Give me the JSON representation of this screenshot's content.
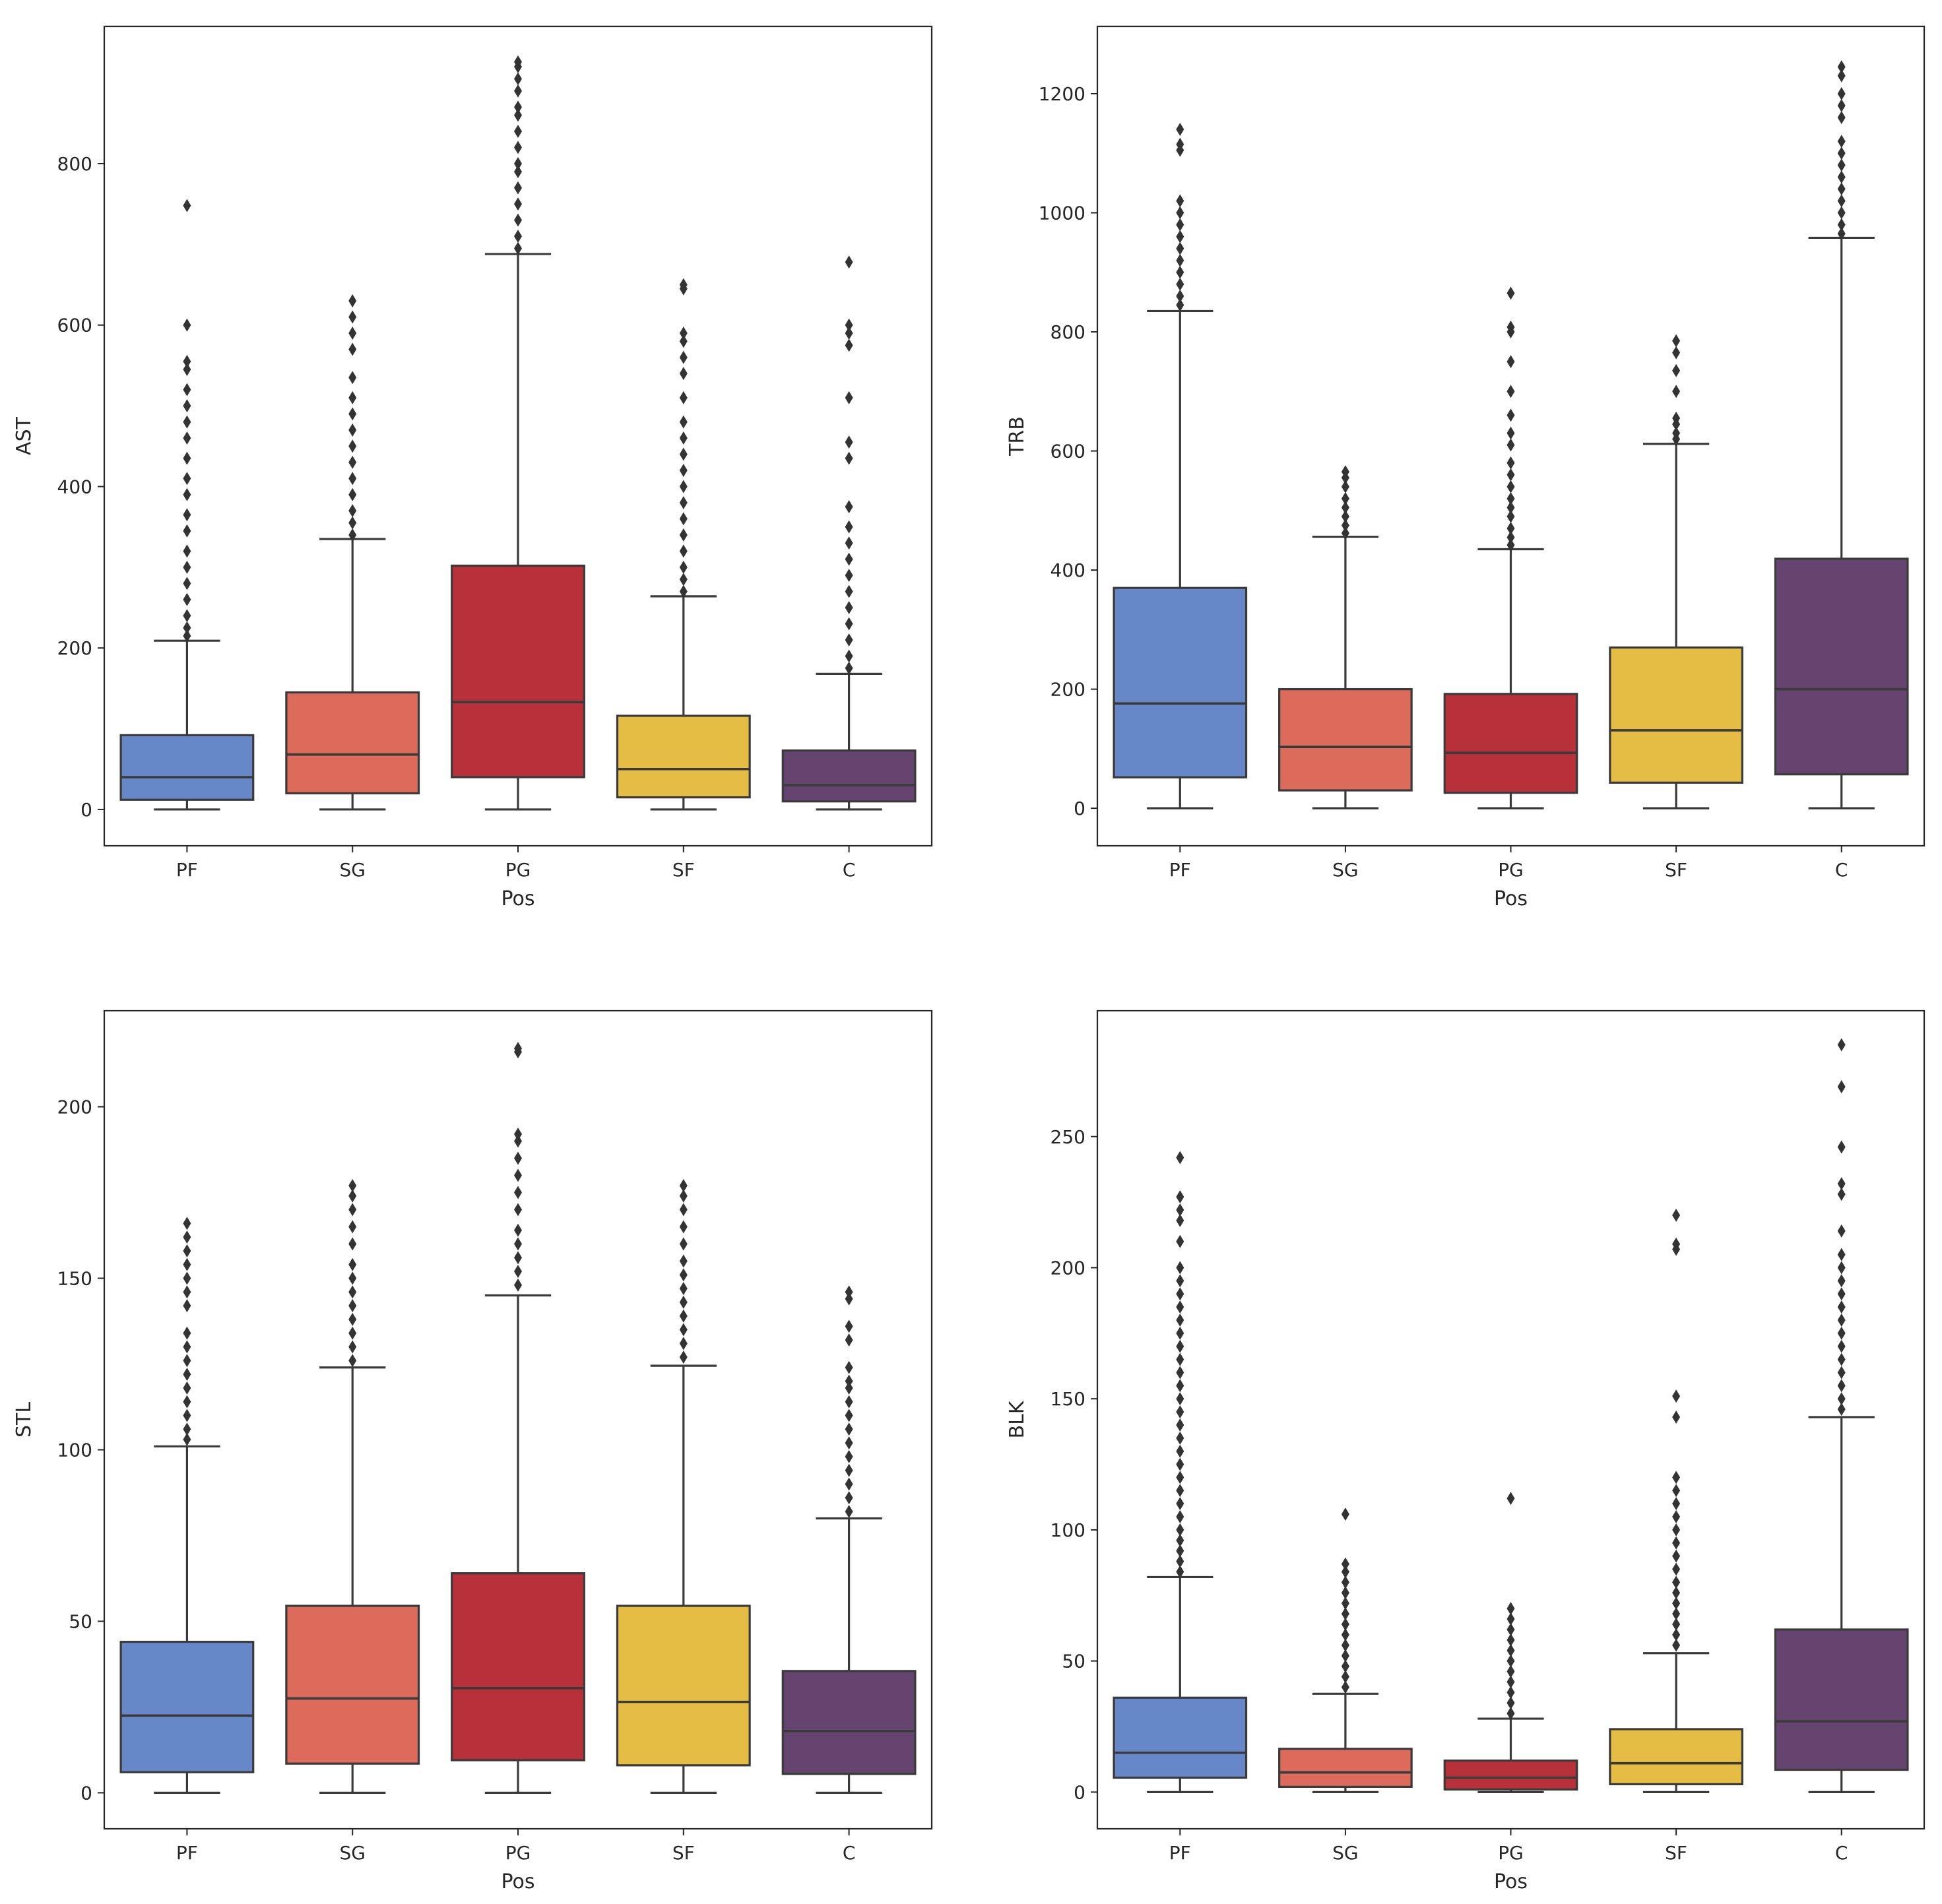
{
  "figure": {
    "palette": {
      "PF": "#6688c8",
      "SG": "#dc6b5c",
      "PG": "#b7303a",
      "SF": "#e5bd44",
      "C": "#654570"
    }
  },
  "chart_data": [
    {
      "type": "box",
      "panel": "top-left",
      "xlabel": "Pos",
      "ylabel": "AST",
      "categories": [
        "PF",
        "SG",
        "PG",
        "SF",
        "C"
      ],
      "ylim": [
        -45,
        970
      ],
      "yticks": [
        0,
        200,
        400,
        600,
        800
      ],
      "boxes": [
        {
          "name": "PF",
          "min": 0,
          "q1": 12,
          "median": 40,
          "q3": 92,
          "max": 209,
          "outliers": [
            215,
            225,
            240,
            260,
            280,
            300,
            320,
            345,
            365,
            390,
            410,
            435,
            460,
            480,
            500,
            520,
            545,
            555,
            600,
            748
          ]
        },
        {
          "name": "SG",
          "min": 0,
          "q1": 20,
          "median": 68,
          "q3": 145,
          "max": 335,
          "outliers": [
            340,
            355,
            370,
            390,
            410,
            430,
            450,
            470,
            490,
            510,
            535,
            570,
            590,
            610,
            630
          ]
        },
        {
          "name": "PG",
          "min": 0,
          "q1": 40,
          "median": 133,
          "q3": 302,
          "max": 688,
          "outliers": [
            695,
            710,
            730,
            750,
            770,
            790,
            800,
            820,
            840,
            860,
            870,
            890,
            905,
            920,
            926
          ]
        },
        {
          "name": "SF",
          "min": 0,
          "q1": 15,
          "median": 50,
          "q3": 116,
          "max": 264,
          "outliers": [
            270,
            285,
            300,
            320,
            340,
            360,
            380,
            400,
            420,
            440,
            460,
            480,
            510,
            540,
            560,
            580,
            590,
            645,
            650
          ]
        },
        {
          "name": "C",
          "min": 0,
          "q1": 10,
          "median": 30,
          "q3": 73,
          "max": 168,
          "outliers": [
            175,
            190,
            210,
            230,
            250,
            270,
            290,
            310,
            330,
            350,
            375,
            435,
            455,
            510,
            575,
            590,
            600,
            678
          ]
        }
      ]
    },
    {
      "type": "box",
      "panel": "top-right",
      "xlabel": "Pos",
      "ylabel": "TRB",
      "categories": [
        "PF",
        "SG",
        "PG",
        "SF",
        "C"
      ],
      "ylim": [
        -63,
        1313
      ],
      "yticks": [
        0,
        200,
        400,
        600,
        800,
        1000,
        1200
      ],
      "boxes": [
        {
          "name": "PF",
          "min": 0,
          "q1": 52,
          "median": 176,
          "q3": 370,
          "max": 835,
          "outliers": [
            845,
            860,
            880,
            900,
            920,
            940,
            960,
            980,
            1000,
            1020,
            1105,
            1115,
            1140
          ]
        },
        {
          "name": "SG",
          "min": 0,
          "q1": 30,
          "median": 103,
          "q3": 200,
          "max": 456,
          "outliers": [
            462,
            475,
            490,
            505,
            520,
            540,
            555,
            565
          ]
        },
        {
          "name": "PG",
          "min": 0,
          "q1": 26,
          "median": 93,
          "q3": 192,
          "max": 435,
          "outliers": [
            442,
            455,
            470,
            490,
            505,
            520,
            540,
            560,
            580,
            610,
            630,
            660,
            700,
            750,
            800,
            808,
            865
          ]
        },
        {
          "name": "SF",
          "min": 0,
          "q1": 43,
          "median": 131,
          "q3": 270,
          "max": 612,
          "outliers": [
            620,
            630,
            645,
            655,
            700,
            735,
            765,
            785
          ]
        },
        {
          "name": "C",
          "min": 0,
          "q1": 57,
          "median": 200,
          "q3": 419,
          "max": 958,
          "outliers": [
            965,
            980,
            1000,
            1020,
            1040,
            1060,
            1080,
            1100,
            1120,
            1160,
            1180,
            1200,
            1230,
            1245
          ]
        }
      ]
    },
    {
      "type": "box",
      "panel": "bottom-left",
      "xlabel": "Pos",
      "ylabel": "STL",
      "categories": [
        "PF",
        "SG",
        "PG",
        "SF",
        "C"
      ],
      "ylim": [
        -10.5,
        228
      ],
      "yticks": [
        0,
        50,
        100,
        150,
        200
      ],
      "boxes": [
        {
          "name": "PF",
          "min": 0,
          "q1": 6,
          "median": 22.5,
          "q3": 44,
          "max": 101,
          "outliers": [
            103,
            106,
            110,
            114,
            118,
            122,
            126,
            130,
            134,
            142,
            146,
            150,
            154,
            158,
            162,
            166
          ]
        },
        {
          "name": "SG",
          "min": 0,
          "q1": 8.5,
          "median": 27.5,
          "q3": 54.5,
          "max": 124,
          "outliers": [
            126,
            130,
            134,
            138,
            142,
            146,
            150,
            154,
            160,
            165,
            170,
            174,
            177
          ]
        },
        {
          "name": "PG",
          "min": 0,
          "q1": 9.5,
          "median": 30.5,
          "q3": 64,
          "max": 145,
          "outliers": [
            148,
            152,
            156,
            160,
            164,
            170,
            175,
            180,
            185,
            190,
            192,
            216,
            217
          ]
        },
        {
          "name": "SF",
          "min": 0,
          "q1": 8,
          "median": 26.5,
          "q3": 54.5,
          "max": 124.5,
          "outliers": [
            127,
            131,
            135,
            139,
            143,
            147,
            151,
            155,
            160,
            165,
            170,
            174,
            177
          ]
        },
        {
          "name": "C",
          "min": 0,
          "q1": 5.5,
          "median": 18,
          "q3": 35.5,
          "max": 80,
          "outliers": [
            82,
            86,
            90,
            94,
            98,
            102,
            106,
            110,
            114,
            118,
            120,
            124,
            132,
            136,
            144,
            146
          ]
        }
      ]
    },
    {
      "type": "box",
      "panel": "bottom-right",
      "xlabel": "Pos",
      "ylabel": "BLK",
      "categories": [
        "PF",
        "SG",
        "PG",
        "SF",
        "C"
      ],
      "ylim": [
        -14,
        298
      ],
      "yticks": [
        0,
        50,
        100,
        150,
        200,
        250
      ],
      "boxes": [
        {
          "name": "PF",
          "min": 0,
          "q1": 5.5,
          "median": 15,
          "q3": 36,
          "max": 82,
          "outliers": [
            84,
            88,
            92,
            96,
            100,
            105,
            110,
            115,
            120,
            125,
            130,
            135,
            140,
            145,
            150,
            155,
            160,
            165,
            170,
            175,
            180,
            185,
            190,
            195,
            200,
            210,
            218,
            222,
            227,
            242
          ]
        },
        {
          "name": "SG",
          "min": 0,
          "q1": 2,
          "median": 7.5,
          "q3": 16.5,
          "max": 37.5,
          "outliers": [
            40,
            44,
            48,
            52,
            56,
            60,
            64,
            68,
            72,
            76,
            80,
            84,
            87,
            106
          ]
        },
        {
          "name": "PG",
          "min": 0,
          "q1": 1,
          "median": 5.5,
          "q3": 12,
          "max": 28,
          "outliers": [
            30,
            34,
            38,
            42,
            46,
            50,
            54,
            58,
            62,
            66,
            70,
            112
          ]
        },
        {
          "name": "SF",
          "min": 0,
          "q1": 3,
          "median": 11,
          "q3": 24,
          "max": 53,
          "outliers": [
            56,
            60,
            64,
            68,
            72,
            76,
            80,
            85,
            90,
            95,
            100,
            105,
            110,
            115,
            120,
            143,
            151,
            207,
            209,
            220
          ]
        },
        {
          "name": "C",
          "min": 0,
          "q1": 8.5,
          "median": 27,
          "q3": 62,
          "max": 143,
          "outliers": [
            146,
            150,
            155,
            160,
            165,
            170,
            175,
            180,
            185,
            190,
            195,
            200,
            205,
            214,
            228,
            232,
            246,
            269,
            285
          ]
        }
      ]
    }
  ]
}
